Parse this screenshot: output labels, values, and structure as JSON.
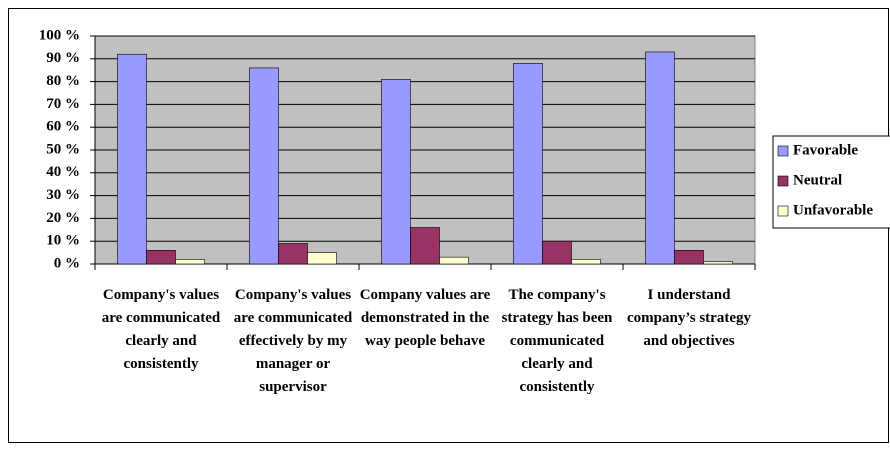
{
  "chart_data": {
    "type": "bar",
    "categories": [
      "Company's values are communicated clearly and consistently",
      "Company's values are communicated effectively by my manager or supervisor",
      "Company values are demonstrated in the way people behave",
      "The company's strategy has been communicated clearly and consistently",
      "I understand company’s strategy and objectives"
    ],
    "series": [
      {
        "name": "Favorable",
        "color": "#9999ff",
        "values": [
          92,
          86,
          81,
          88,
          93
        ]
      },
      {
        "name": "Neutral",
        "color": "#993366",
        "values": [
          6,
          9,
          16,
          10,
          6
        ]
      },
      {
        "name": "Unfavorable",
        "color": "#ffffcc",
        "values": [
          2,
          5,
          3,
          2,
          1
        ]
      }
    ],
    "ylim": [
      0,
      100
    ],
    "yticks": [
      {
        "value": 0,
        "label": "0 %"
      },
      {
        "value": 10,
        "label": "10 %"
      },
      {
        "value": 20,
        "label": "20 %"
      },
      {
        "value": 30,
        "label": "30 %"
      },
      {
        "value": 40,
        "label": "40 %"
      },
      {
        "value": 50,
        "label": "50 %"
      },
      {
        "value": 60,
        "label": "60 %"
      },
      {
        "value": 70,
        "label": "70 %"
      },
      {
        "value": 80,
        "label": "80 %"
      },
      {
        "value": 90,
        "label": "90 %"
      },
      {
        "value": 100,
        "label": "100 %"
      }
    ],
    "grid": true,
    "legend": "right",
    "plot_background": "#c0c0c0"
  }
}
